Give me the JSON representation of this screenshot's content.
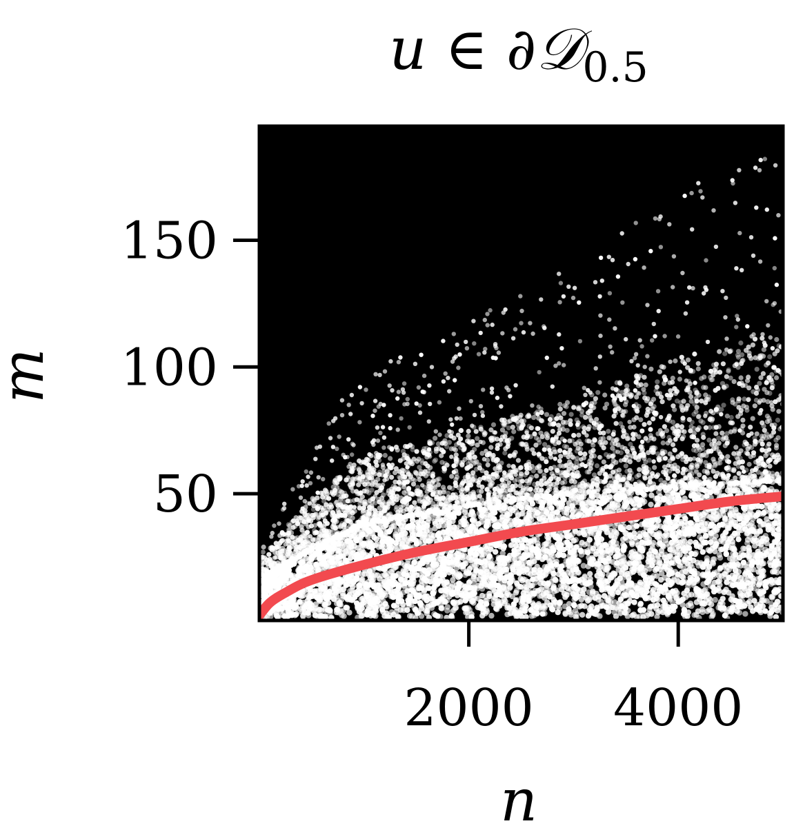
{
  "chart_data": {
    "type": "heatmap",
    "title": {
      "main": "u ∈ ∂𝒟",
      "subscript": "0.5"
    },
    "xlabel": "n",
    "ylabel": "m",
    "xlim": [
      0,
      5000
    ],
    "ylim": [
      0,
      195
    ],
    "x_ticks": [
      {
        "value": 2000,
        "label": "2000"
      },
      {
        "value": 4000,
        "label": "4000"
      }
    ],
    "y_ticks": [
      {
        "value": 50,
        "label": "50"
      },
      {
        "value": 100,
        "label": "100"
      },
      {
        "value": 150,
        "label": "150"
      }
    ],
    "grid": false,
    "colormap": "black-to-white (count density)",
    "background_color": "#000000",
    "scatter_color": "#ffffff",
    "density_profile": [
      {
        "n": 100,
        "dense_top": 18,
        "scatter_top": 35
      },
      {
        "n": 500,
        "dense_top": 28,
        "scatter_top": 70
      },
      {
        "n": 1000,
        "dense_top": 38,
        "scatter_top": 100
      },
      {
        "n": 2000,
        "dense_top": 45,
        "scatter_top": 120
      },
      {
        "n": 3000,
        "dense_top": 50,
        "scatter_top": 140
      },
      {
        "n": 4000,
        "dense_top": 53,
        "scatter_top": 170
      },
      {
        "n": 5000,
        "dense_top": 55,
        "scatter_top": 190
      }
    ],
    "series": [
      {
        "kind": "curve",
        "color": "#f24a4f",
        "x": [
          0,
          100,
          250,
          500,
          1000,
          1500,
          2000,
          2500,
          3000,
          3500,
          4000,
          4500,
          5000
        ],
        "y": [
          2,
          7,
          11,
          16,
          22,
          27,
          31,
          35,
          38,
          41,
          44,
          47,
          49
        ]
      }
    ]
  }
}
